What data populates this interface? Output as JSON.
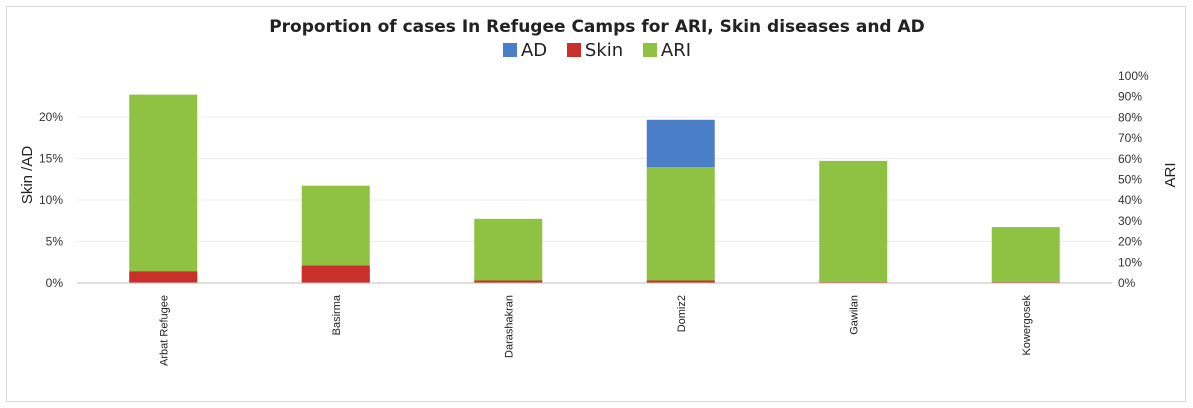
{
  "chart_data": {
    "type": "bar",
    "title": "Proportion of cases In Refugee Camps for ARI, Skin diseases and AD",
    "categories": [
      "Arbat Refugee",
      "Basirma",
      "Darashakran",
      "Domiz2",
      "Gawilan",
      "Kowergosek"
    ],
    "series": [
      {
        "name": "AD",
        "axis": "left",
        "values": [
          0,
          0,
          0,
          0.057,
          0,
          0
        ],
        "color": "#4a7fc8"
      },
      {
        "name": "Skin",
        "axis": "left",
        "values": [
          0.014,
          0.021,
          0.003,
          0.003,
          0.001,
          0.001
        ],
        "color": "#c9302c"
      },
      {
        "name": "ARI",
        "axis": "right",
        "values": [
          0.91,
          0.47,
          0.31,
          0.56,
          0.59,
          0.27
        ],
        "color": "#8fc142"
      }
    ],
    "legend": [
      "AD",
      "Skin",
      "ARI"
    ],
    "legend_position": "top-center",
    "ylabel_left": "Skin /AD",
    "ylabel_right": "ARI",
    "ylim_left": [
      0,
      0.25
    ],
    "ylim_right": [
      0,
      1.0
    ],
    "yticks_left": [
      "0%",
      "5%",
      "10%",
      "15%",
      "20%"
    ],
    "yticks_right": [
      "0%",
      "10%",
      "20%",
      "30%",
      "40%",
      "50%",
      "60%",
      "70%",
      "80%",
      "90%",
      "100%"
    ],
    "grid": true
  }
}
